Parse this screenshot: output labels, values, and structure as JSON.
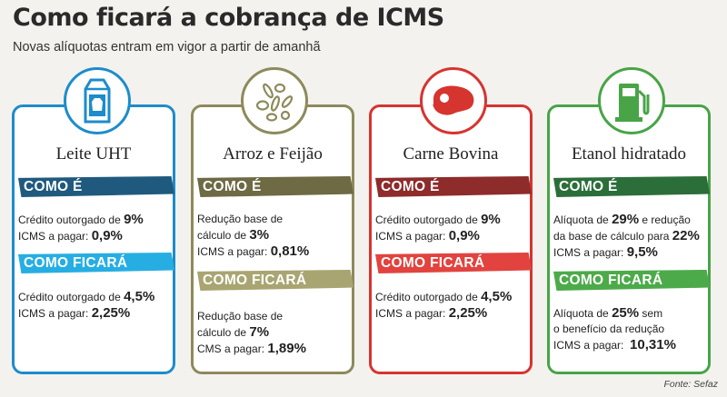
{
  "title": "Como ficará a cobrança de ICMS",
  "subtitle": "Novas alíquotas entram em vigor a partir de amanhã",
  "source": "Fonte: Sefaz",
  "colors": {
    "blue": "#1d8ccb",
    "blue_dark": "#1f5a7e",
    "blue_light": "#26aee3",
    "olive": "#8d8a5c",
    "olive_dark": "#6d6a44",
    "olive_light": "#a9a572",
    "red": "#d6342f",
    "red_dark": "#8e2b2b",
    "red_light": "#e2433e",
    "green": "#48a447",
    "green_dark": "#2b6e3a",
    "green_light": "#4daa4a"
  },
  "cards": [
    {
      "name": "Leite UHT",
      "icon": "milk-carton-icon",
      "como_e_label": "COMO É",
      "como_e": [
        {
          "pre": "Crédito outorgado de ",
          "val": "9%",
          "post": ""
        },
        {
          "pre": "ICMS a pagar: ",
          "val": "0,9%",
          "post": ""
        }
      ],
      "como_ficara_label": "COMO FICARÁ",
      "como_ficara": [
        {
          "pre": "Crédito outorgado de ",
          "val": "4,5%",
          "post": ""
        },
        {
          "pre": "ICMS a pagar: ",
          "val": "2,25%",
          "post": ""
        }
      ]
    },
    {
      "name": "Arroz e Feijão",
      "icon": "grains-icon",
      "como_e_label": "COMO É",
      "como_e": [
        {
          "pre": "Redução base de",
          "val": "",
          "post": ""
        },
        {
          "pre": "cálculo de ",
          "val": "3%",
          "post": ""
        },
        {
          "pre": "ICMS a pagar: ",
          "val": "0,81%",
          "post": ""
        }
      ],
      "como_ficara_label": "COMO FICARÁ",
      "como_ficara": [
        {
          "pre": "Redução base de",
          "val": "",
          "post": ""
        },
        {
          "pre": "cálculo de ",
          "val": "7%",
          "post": ""
        },
        {
          "pre": "CMS a pagar: ",
          "val": "1,89%",
          "post": ""
        }
      ]
    },
    {
      "name": "Carne Bovina",
      "icon": "steak-icon",
      "como_e_label": "COMO É",
      "como_e": [
        {
          "pre": "Crédito outorgado de ",
          "val": "9%",
          "post": ""
        },
        {
          "pre": "ICMS a pagar: ",
          "val": "0,9%",
          "post": ""
        }
      ],
      "como_ficara_label": "COMO FICARÁ",
      "como_ficara": [
        {
          "pre": "Crédito outorgado de ",
          "val": "4,5%",
          "post": ""
        },
        {
          "pre": "ICMS a pagar: ",
          "val": "2,25%",
          "post": ""
        }
      ]
    },
    {
      "name": "Etanol hidratado",
      "icon": "fuel-pump-icon",
      "como_e_label": "COMO É",
      "como_e": [
        {
          "pre": "Alíquota de ",
          "val": "29%",
          "post": " e redução"
        },
        {
          "pre": "da base de cálculo para ",
          "val": "22%",
          "post": ""
        },
        {
          "pre": "ICMS a pagar: ",
          "val": "9,5%",
          "post": ""
        }
      ],
      "como_ficara_label": "COMO FICARÁ",
      "como_ficara": [
        {
          "pre": "Alíquota de ",
          "val": "25%",
          "post": " sem"
        },
        {
          "pre": "o benefício da redução",
          "val": "",
          "post": ""
        },
        {
          "pre": "ICMS a pagar:  ",
          "val": "10,31%",
          "post": ""
        }
      ]
    }
  ]
}
